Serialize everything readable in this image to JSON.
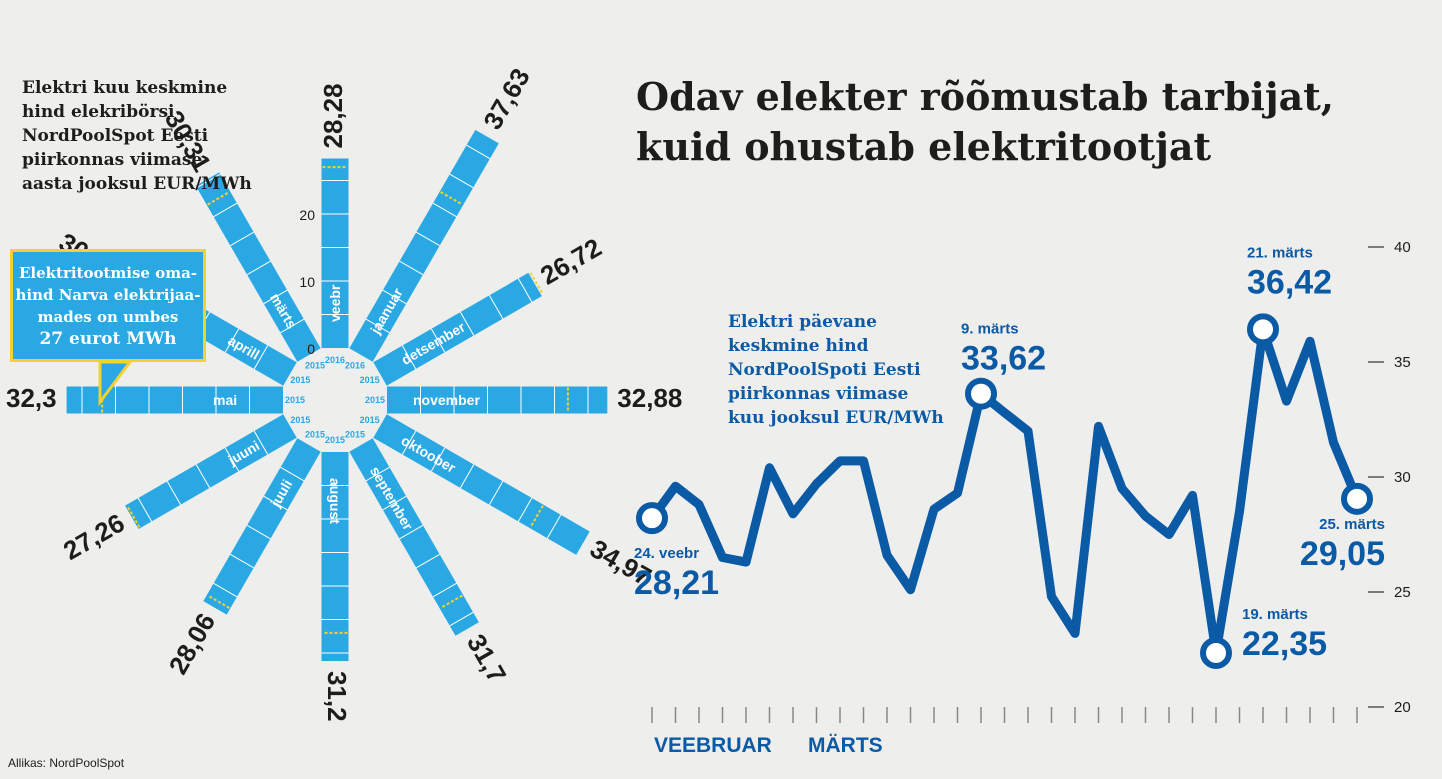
{
  "headline": [
    "Odav elekter rõõmustab tarbijat,",
    "kuid ohustab elektritootjat"
  ],
  "radial_description": [
    "Elektri kuu keskmine",
    "hind elekribörsi",
    "NordPoolSpot Eesti",
    "piirkonnas viimase",
    "aasta jooksul EUR/MWh"
  ],
  "callout": {
    "lines": [
      "Elektritootmise oma-",
      "hind Narva elektrijaa-",
      "mades on umbes"
    ],
    "highlight": "27 eurot MWh",
    "value": 27
  },
  "line_description": [
    "Elektri päevane",
    "keskmine hind",
    "NordPoolSpoti Eesti",
    "piirkonnas viimase",
    "kuu jooksul EUR/MWh"
  ],
  "source": "Allikas: NordPoolSpot",
  "colors": {
    "bar": "#2aa8e4",
    "line": "#0a5aa5",
    "threshold": "#f2d22e",
    "callout_border": "#f2d22e",
    "text": "#1d1d1b",
    "background": "#eeeeed"
  },
  "chart_data": [
    {
      "type": "bar",
      "layout": "radial",
      "axis_ticks": [
        "0",
        "10",
        "20"
      ],
      "threshold": 27,
      "months": [
        {
          "month": "veebr",
          "year": "2016",
          "value": 28.28,
          "label": "28,28"
        },
        {
          "month": "jaanuar",
          "year": "2016",
          "value": 37.63,
          "label": "37,63"
        },
        {
          "month": "detsember",
          "year": "2015",
          "value": 26.72,
          "label": "26,72"
        },
        {
          "month": "november",
          "year": "2015",
          "value": 32.88,
          "label": "32,88"
        },
        {
          "month": "oktoober",
          "year": "2015",
          "value": 34.97,
          "label": "34,97"
        },
        {
          "month": "september",
          "year": "2015",
          "value": 31.7,
          "label": "31,7"
        },
        {
          "month": "august",
          "year": "2015",
          "value": 31.2,
          "label": "31,2"
        },
        {
          "month": "juuli",
          "year": "2015",
          "value": 28.06,
          "label": "28,06"
        },
        {
          "month": "juuni",
          "year": "2015",
          "value": 27.26,
          "label": "27,26"
        },
        {
          "month": "mai",
          "year": "2015",
          "value": 32.3,
          "label": "32,3"
        },
        {
          "month": "aprill",
          "year": "2015",
          "value": 30.5,
          "label": "30,5"
        },
        {
          "month": "märts",
          "year": "2015",
          "value": 30.31,
          "label": "30,31"
        }
      ]
    },
    {
      "type": "line",
      "ylim": [
        20,
        40
      ],
      "yticks": [
        "20",
        "25",
        "30",
        "35",
        "40"
      ],
      "x_month_labels": [
        "VEEBRUAR",
        "MÄRTS"
      ],
      "x": [
        "24.02",
        "25.02",
        "26.02",
        "27.02",
        "28.02",
        "29.02",
        "01.03",
        "02.03",
        "03.03",
        "04.03",
        "05.03",
        "06.03",
        "07.03",
        "08.03",
        "09.03",
        "10.03",
        "11.03",
        "12.03",
        "13.03",
        "14.03",
        "15.03",
        "16.03",
        "17.03",
        "18.03",
        "19.03",
        "20.03",
        "21.03",
        "22.03",
        "23.03",
        "24.03",
        "25.03"
      ],
      "values": [
        28.21,
        29.6,
        28.8,
        26.5,
        26.3,
        30.4,
        28.4,
        29.7,
        30.7,
        30.7,
        26.6,
        25.1,
        28.6,
        29.3,
        33.62,
        32.8,
        32.0,
        24.8,
        23.2,
        32.2,
        29.5,
        28.3,
        27.5,
        29.2,
        22.35,
        28.5,
        36.42,
        33.3,
        35.9,
        31.5,
        29.05
      ],
      "annotations": [
        {
          "index": 0,
          "date": "24. veebr",
          "value": "28,21"
        },
        {
          "index": 14,
          "date": "9. märts",
          "value": "33,62"
        },
        {
          "index": 24,
          "date": "19. märts",
          "value": "22,35"
        },
        {
          "index": 26,
          "date": "21. märts",
          "value": "36,42"
        },
        {
          "index": 30,
          "date": "25. märts",
          "value": "29,05"
        }
      ]
    }
  ]
}
